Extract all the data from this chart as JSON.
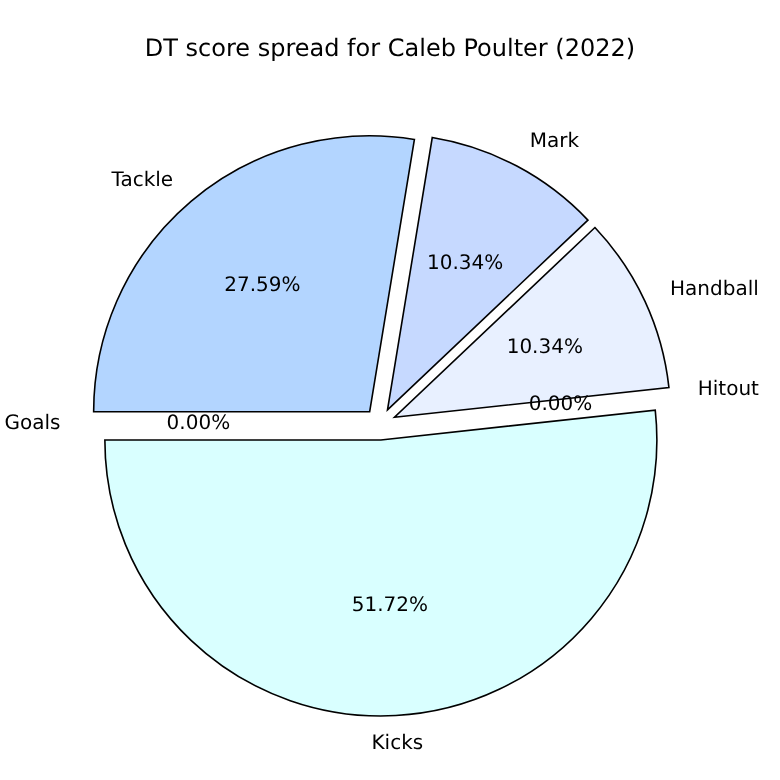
{
  "chart_data": {
    "type": "pie",
    "title": "DT score spread for Caleb Poulter (2022)",
    "categories": [
      "Kicks",
      "Hitout",
      "Handball",
      "Mark",
      "Tackle",
      "Goals"
    ],
    "values": [
      51.72,
      0,
      10.34,
      10.34,
      27.59,
      0
    ],
    "value_labels": [
      "51.72%",
      "0.00%",
      "10.34%",
      "10.34%",
      "27.59%",
      "0.00%"
    ],
    "colors": [
      "#d9ffff",
      "#d9e6ff",
      "#e8f0ff",
      "#c6d9ff",
      "#b3d5ff",
      "#cce0ff"
    ]
  }
}
